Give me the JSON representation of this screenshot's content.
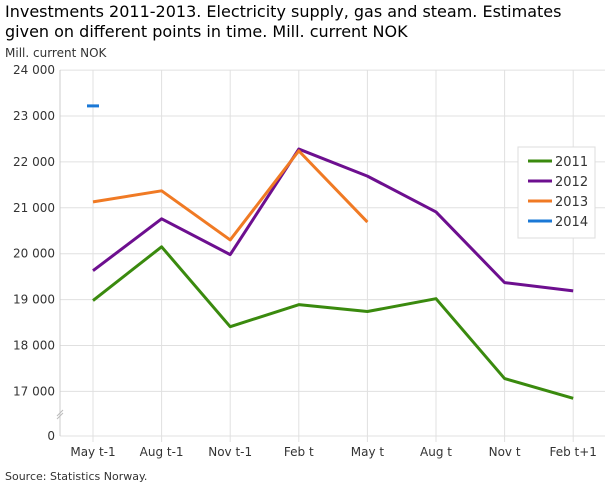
{
  "chart_data": {
    "type": "line",
    "title": "Investments 2011-2013. Electricity supply, gas and steam. Estimates given on different points in time. Mill. current NOK",
    "ylabel": "Mill. current NOK",
    "xlabel": "",
    "categories": [
      "May t-1",
      "Aug t-1",
      "Nov t-1",
      "Feb t",
      "May t",
      "Aug t",
      "Nov t",
      "Feb t+1"
    ],
    "yticks": [
      0,
      17000,
      18000,
      19000,
      20000,
      21000,
      22000,
      23000,
      24000
    ],
    "ytick_labels": [
      "0",
      "17 000",
      "18 000",
      "19 000",
      "20 000",
      "21 000",
      "22 000",
      "23 000",
      "24 000"
    ],
    "ylim": [
      16000,
      24000
    ],
    "axis_break": true,
    "grid": true,
    "legend_position": "right",
    "series": [
      {
        "name": "2011",
        "color": "#3a8a0e",
        "values": [
          18980,
          20150,
          18410,
          18890,
          18740,
          19020,
          17280,
          16850
        ]
      },
      {
        "name": "2012",
        "color": "#6d0f8f",
        "values": [
          19630,
          20760,
          19980,
          22280,
          21690,
          20910,
          19370,
          19190
        ]
      },
      {
        "name": "2013",
        "color": "#f07a24",
        "values": [
          21130,
          21370,
          20300,
          22240,
          20690,
          null,
          null,
          null
        ]
      },
      {
        "name": "2014",
        "color": "#1a78d6",
        "values": [
          23220,
          null,
          null,
          null,
          null,
          null,
          null,
          null
        ]
      }
    ],
    "source": "Source: Statistics Norway."
  }
}
